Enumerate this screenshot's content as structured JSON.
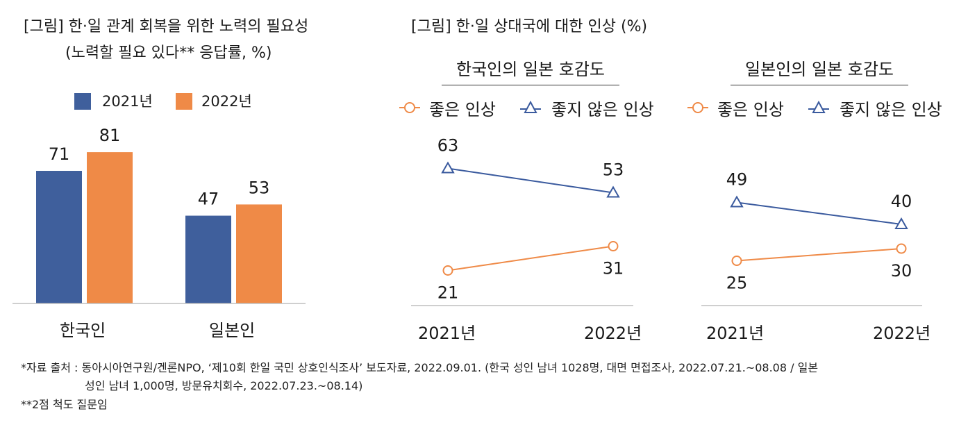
{
  "colors": {
    "blue": "#3f5f9c",
    "orange": "#ef8a47",
    "line_blue": "#3a5a9e",
    "line_orange": "#ef8a47",
    "axis": "#bfbfbf"
  },
  "left": {
    "title": "[그림] 한·일 관계 회복을 위한 노력의 필요성",
    "subtitle": "(노력할 필요 있다** 응답률, %)"
  },
  "right": {
    "title": "[그림] 한·일 상대국에 대한 인상 (%)",
    "panels": [
      {
        "title": "한국인의 일본 호감도",
        "legend_good": "좋은 인상",
        "legend_bad": "좋지 않은 인상",
        "x_labels": [
          "2021년",
          "2022년"
        ]
      },
      {
        "title": "일본인의 일본 호감도",
        "legend_good": "좋은 인상",
        "legend_bad": "좋지 않은 인상",
        "x_labels": [
          "2021년",
          "2022년"
        ]
      }
    ]
  },
  "chart_data": [
    {
      "type": "bar",
      "title": "[그림] 한·일 관계 회복을 위한 노력의 필요성",
      "subtitle": "(노력할 필요 있다** 응답률, %)",
      "categories": [
        "한국인",
        "일본인"
      ],
      "series": [
        {
          "name": "2021년",
          "values": [
            71,
            47
          ]
        },
        {
          "name": "2022년",
          "values": [
            81,
            53
          ]
        }
      ],
      "legend_position": "top"
    },
    {
      "type": "line",
      "title": "한국인의 일본 호감도",
      "x": [
        "2021년",
        "2022년"
      ],
      "series": [
        {
          "name": "좋은 인상",
          "values": [
            21,
            31
          ]
        },
        {
          "name": "좋지 않은 인상",
          "values": [
            63,
            53
          ]
        }
      ],
      "legend_position": "top"
    },
    {
      "type": "line",
      "title": "일본인의 일본 호감도",
      "x": [
        "2021년",
        "2022년"
      ],
      "series": [
        {
          "name": "좋은 인상",
          "values": [
            25,
            30
          ]
        },
        {
          "name": "좋지 않은 인상",
          "values": [
            49,
            40
          ]
        }
      ],
      "legend_position": "top"
    }
  ],
  "notes": {
    "source_line1": "*자료 출처 : 동아시아연구원/겐론NPO, ‘제10회 한일 국민 상호인식조사’ 보도자료, 2022.09.01. (한국 성인 남녀 1028명, 대면 면접조사, 2022.07.21.~08.08 / 일본",
    "source_line2": "성인 남녀 1,000명, 방문유치회수, 2022.07.23.~08.14)",
    "footnote": "**2점 척도 질문임"
  }
}
